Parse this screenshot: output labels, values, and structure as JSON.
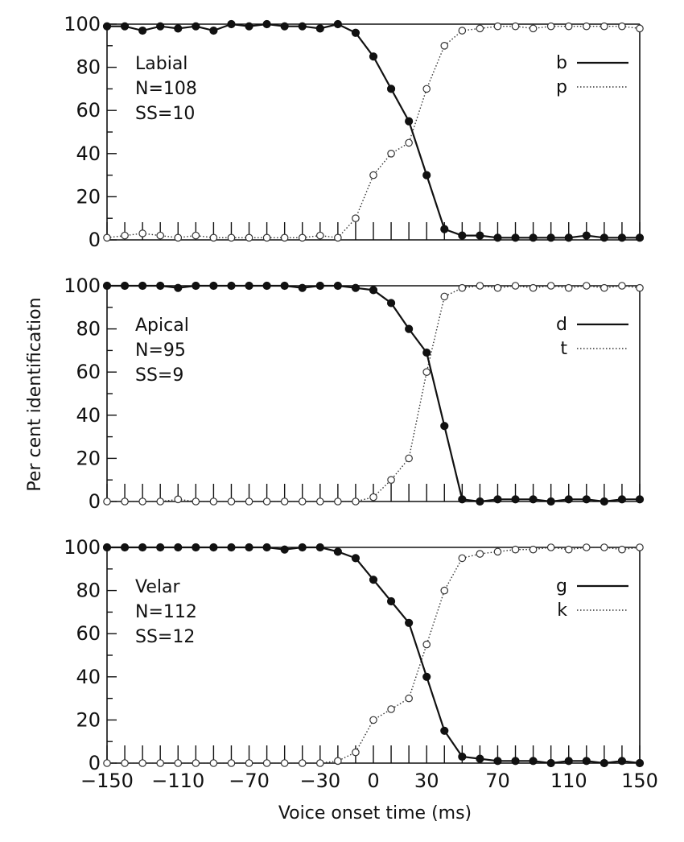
{
  "chart_data": {
    "type": "line",
    "ylabel": "Per cent identification",
    "xlabel": "Voice onset time (ms)",
    "xlim": [
      -150,
      150
    ],
    "ylim": [
      0,
      100
    ],
    "yticks": [
      0,
      20,
      40,
      60,
      80,
      100
    ],
    "xticks": [
      -150,
      -110,
      -70,
      -30,
      0,
      30,
      70,
      110,
      150
    ],
    "xtick_labels": [
      "−150",
      "−110",
      "−70",
      "−30",
      "0",
      "30",
      "70",
      "110",
      "150"
    ],
    "panels": [
      {
        "label_lines": [
          "Labial",
          "N=108",
          "SS=10"
        ],
        "legend": [
          "b",
          "p"
        ],
        "x": [
          -150,
          -140,
          -130,
          -120,
          -110,
          -100,
          -90,
          -80,
          -70,
          -60,
          -50,
          -40,
          -30,
          -20,
          -10,
          0,
          10,
          20,
          30,
          40,
          50,
          60,
          70,
          80,
          90,
          100,
          110,
          120,
          130,
          140,
          150
        ],
        "solid": [
          99,
          99,
          97,
          99,
          98,
          99,
          97,
          100,
          99,
          100,
          99,
          99,
          98,
          100,
          96,
          85,
          70,
          55,
          30,
          5,
          2,
          2,
          1,
          1,
          1,
          1,
          1,
          2,
          1,
          1,
          1
        ],
        "dotted": [
          1,
          2,
          3,
          2,
          1,
          2,
          1,
          1,
          1,
          1,
          1,
          1,
          2,
          1,
          10,
          30,
          40,
          45,
          70,
          90,
          97,
          98,
          99,
          99,
          98,
          99,
          99,
          99,
          99,
          99,
          98
        ]
      },
      {
        "label_lines": [
          "Apical",
          "N=95",
          "SS=9"
        ],
        "legend": [
          "d",
          "t"
        ],
        "x": [
          -150,
          -140,
          -130,
          -120,
          -110,
          -100,
          -90,
          -80,
          -70,
          -60,
          -50,
          -40,
          -30,
          -20,
          -10,
          0,
          10,
          20,
          30,
          40,
          50,
          60,
          70,
          80,
          90,
          100,
          110,
          120,
          130,
          140,
          150
        ],
        "solid": [
          100,
          100,
          100,
          100,
          99,
          100,
          100,
          100,
          100,
          100,
          100,
          99,
          100,
          100,
          99,
          98,
          92,
          80,
          69,
          35,
          1,
          0,
          1,
          1,
          1,
          0,
          1,
          1,
          0,
          1,
          1
        ],
        "dotted": [
          0,
          0,
          0,
          0,
          1,
          0,
          0,
          0,
          0,
          0,
          0,
          0,
          0,
          0,
          0,
          2,
          10,
          20,
          60,
          95,
          99,
          100,
          99,
          100,
          99,
          100,
          99,
          100,
          99,
          100,
          99
        ]
      },
      {
        "label_lines": [
          "Velar",
          "N=112",
          "SS=12"
        ],
        "legend": [
          "g",
          "k"
        ],
        "x": [
          -150,
          -140,
          -130,
          -120,
          -110,
          -100,
          -90,
          -80,
          -70,
          -60,
          -50,
          -40,
          -30,
          -20,
          -10,
          0,
          10,
          20,
          30,
          40,
          50,
          60,
          70,
          80,
          90,
          100,
          110,
          120,
          130,
          140,
          150
        ],
        "solid": [
          100,
          100,
          100,
          100,
          100,
          100,
          100,
          100,
          100,
          100,
          99,
          100,
          100,
          98,
          95,
          85,
          75,
          65,
          40,
          15,
          3,
          2,
          1,
          1,
          1,
          0,
          1,
          1,
          0,
          1,
          0
        ],
        "dotted": [
          0,
          0,
          0,
          0,
          0,
          0,
          0,
          0,
          0,
          0,
          0,
          0,
          0,
          1,
          5,
          20,
          25,
          30,
          55,
          80,
          95,
          97,
          98,
          99,
          99,
          100,
          99,
          100,
          100,
          99,
          100
        ]
      }
    ]
  }
}
